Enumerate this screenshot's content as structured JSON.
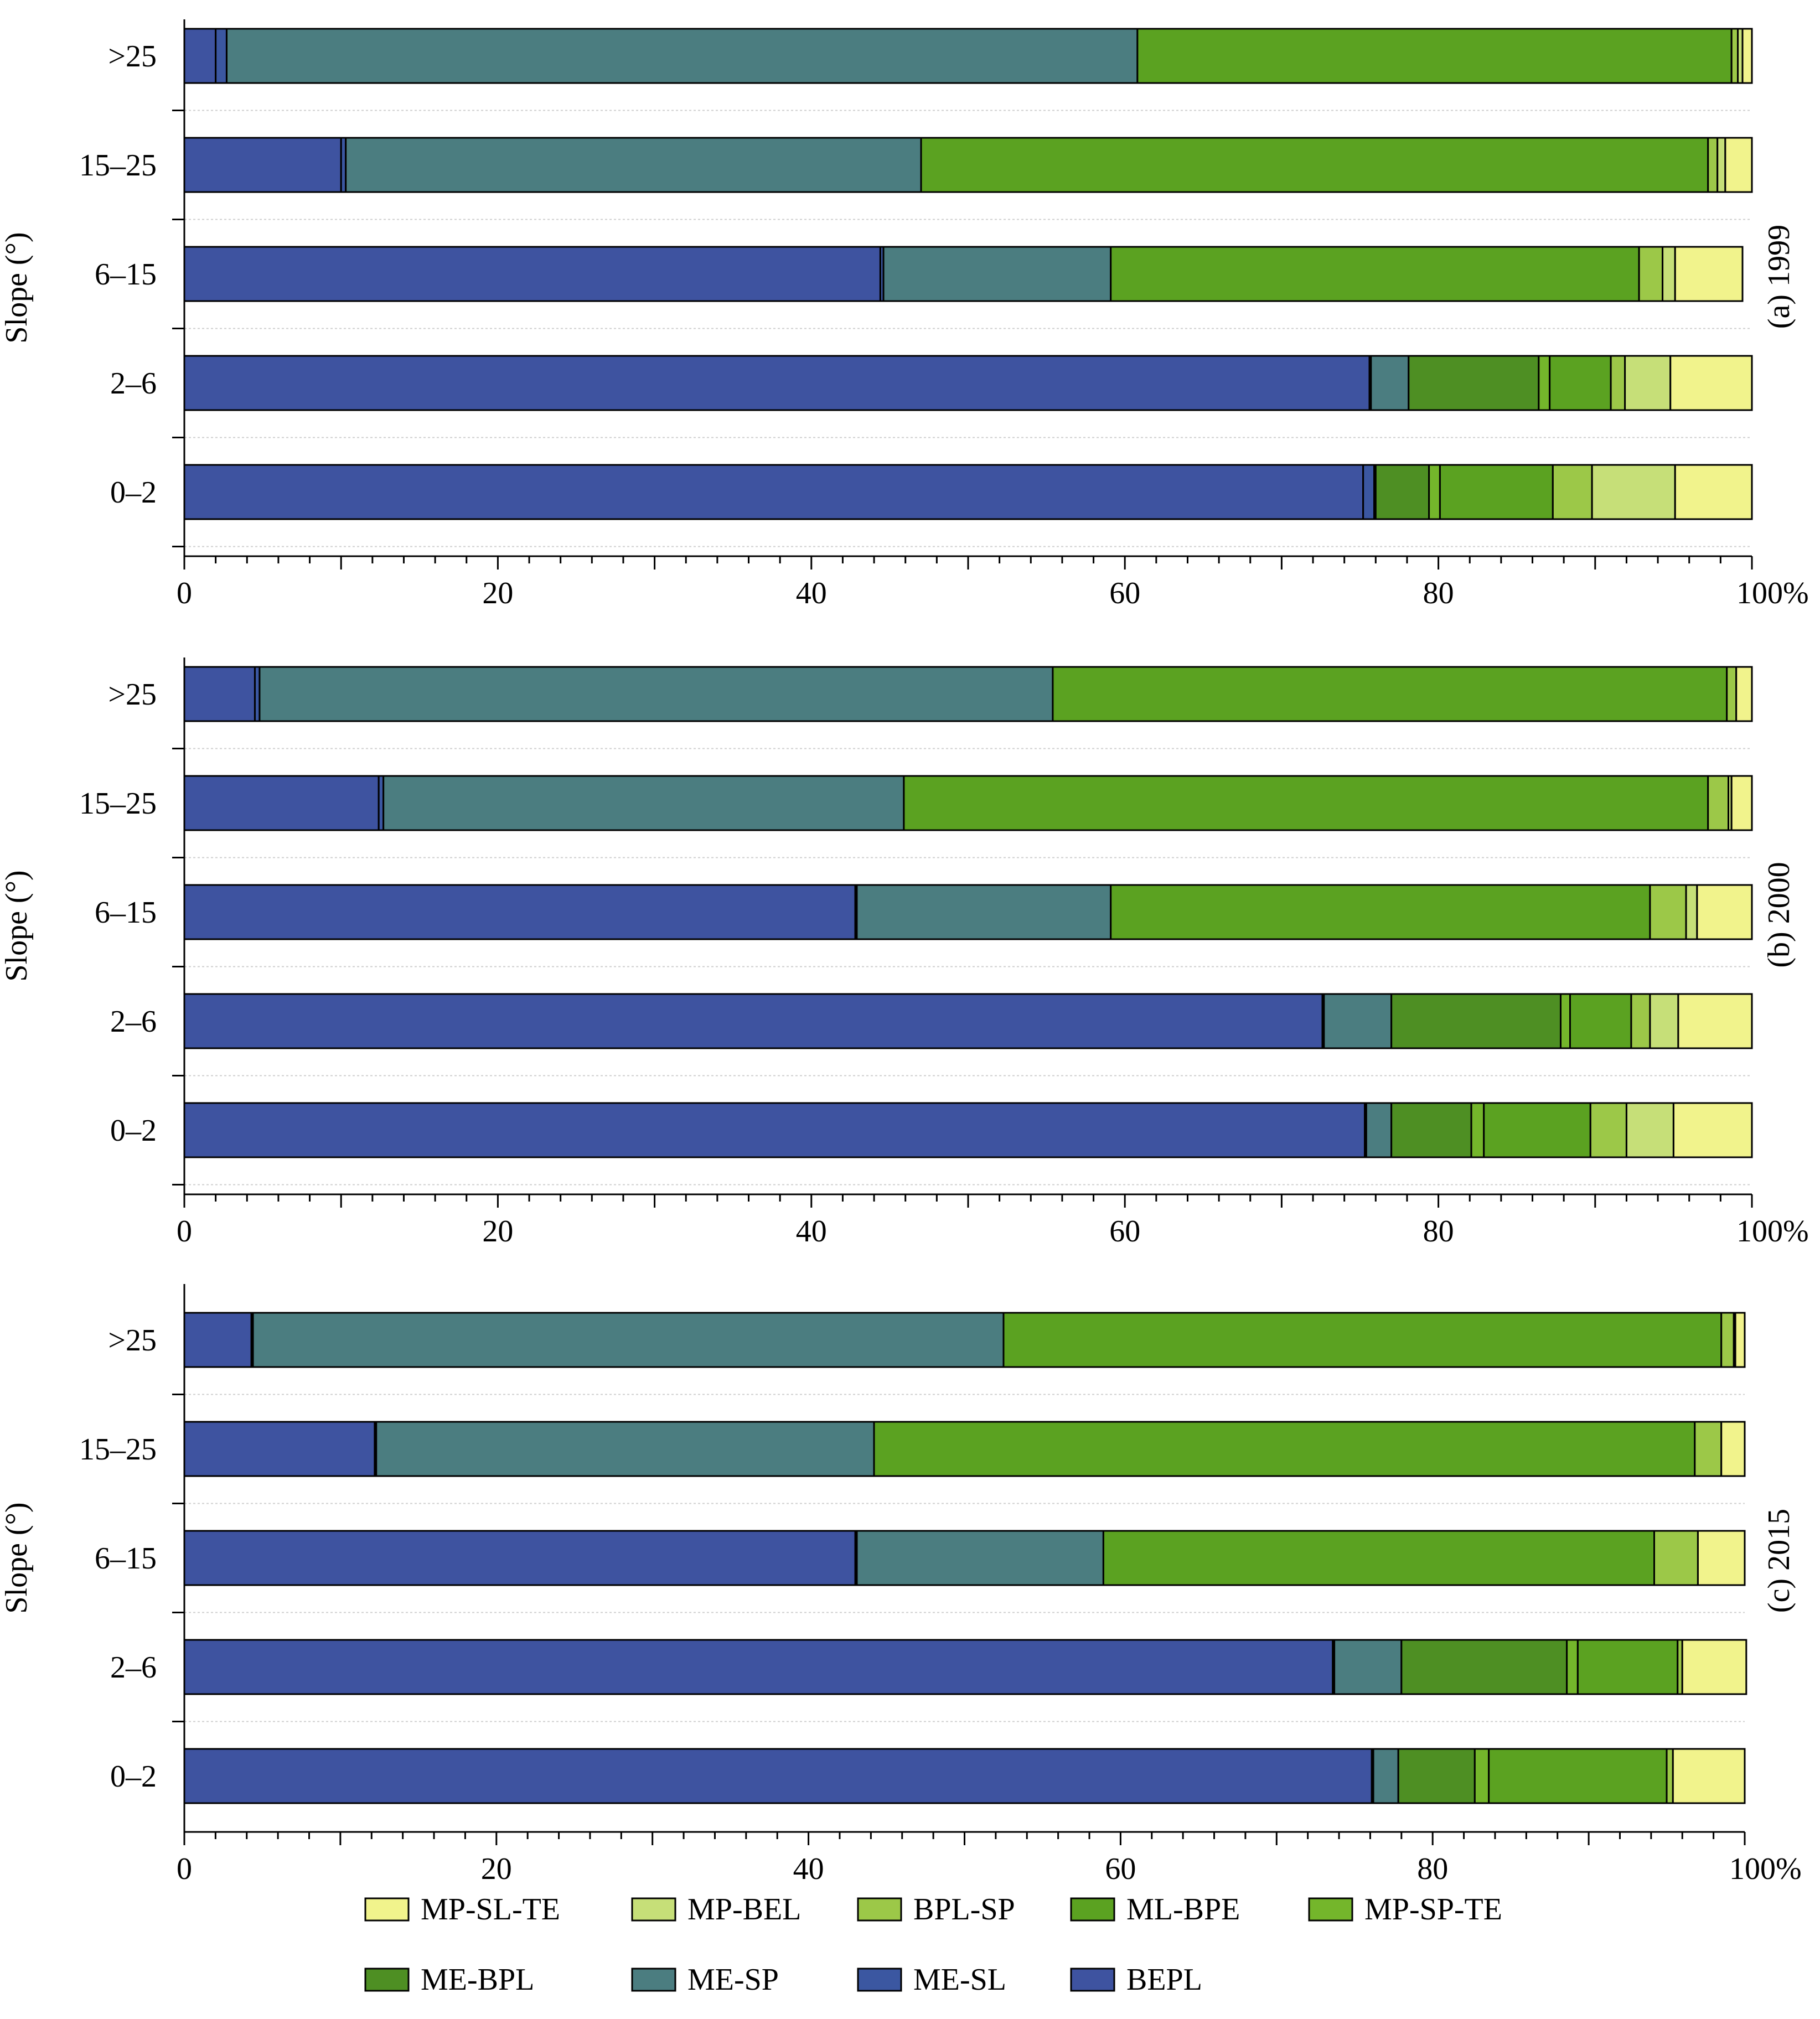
{
  "colors": {
    "MP-SL-TE": "#f1f38c",
    "MP-BEL": "#c6df78",
    "BPL-SP": "#9cc848",
    "ML-BPE": "#5ba221",
    "MP-SP-TE": "#74b62b",
    "ME-BPL": "#4e8f23",
    "ME-SP": "#4b7d80",
    "ME-SL": "#3b57a1",
    "BEPL": "#3e53a0"
  },
  "legend": {
    "items": [
      {
        "key": "MP-SL-TE",
        "label": "MP-SL-TE"
      },
      {
        "key": "MP-BEL",
        "label": "MP-BEL"
      },
      {
        "key": "BPL-SP",
        "label": "BPL-SP"
      },
      {
        "key": "ML-BPE",
        "label": "ML-BPE"
      },
      {
        "key": "MP-SP-TE",
        "label": "MP-SP-TE"
      },
      {
        "key": "ME-BPL",
        "label": "ME-BPL"
      },
      {
        "key": "ME-SP",
        "label": "ME-SP"
      },
      {
        "key": "ME-SL",
        "label": "ME-SL"
      },
      {
        "key": "BEPL",
        "label": "BEPL"
      }
    ]
  },
  "chart_data": [
    {
      "type": "bar",
      "orientation": "horizontal",
      "stacked": true,
      "title": "(a) 1999",
      "ylabel": "Slope (°)",
      "xlabel": "",
      "xlim": [
        0,
        100
      ],
      "x_ticks": [
        "0",
        "20",
        "40",
        "60",
        "80",
        "100%"
      ],
      "categories": [
        ">25",
        "15–25",
        "6–15",
        "2–6",
        "0–2"
      ],
      "series": [
        {
          "name": "BEPL",
          "values": [
            2.0,
            10.0,
            44.4,
            75.6,
            75.2
          ]
        },
        {
          "name": "ME-SL",
          "values": [
            0.7,
            0.3,
            0.2,
            0.1,
            0.7
          ]
        },
        {
          "name": "ME-SP",
          "values": [
            58.1,
            36.7,
            14.5,
            2.4,
            0.1
          ]
        },
        {
          "name": "ME-BPL",
          "values": [
            0.0,
            0.0,
            0.0,
            8.3,
            3.4
          ]
        },
        {
          "name": "MP-SP-TE",
          "values": [
            0.0,
            0.0,
            0.0,
            0.7,
            0.7
          ]
        },
        {
          "name": "ML-BPE",
          "values": [
            37.9,
            50.2,
            33.7,
            3.9,
            7.2
          ]
        },
        {
          "name": "BPL-SP",
          "values": [
            0.4,
            0.6,
            1.5,
            0.9,
            2.5
          ]
        },
        {
          "name": "MP-BEL",
          "values": [
            0.3,
            0.5,
            0.8,
            2.9,
            5.3
          ]
        },
        {
          "name": "MP-SL-TE",
          "values": [
            0.6,
            1.7,
            4.3,
            5.2,
            4.9
          ]
        }
      ]
    },
    {
      "type": "bar",
      "orientation": "horizontal",
      "stacked": true,
      "title": "(b) 2000",
      "ylabel": "Slope (°)",
      "xlabel": "",
      "xlim": [
        0,
        100
      ],
      "x_ticks": [
        "0",
        "20",
        "40",
        "60",
        "80",
        "100%"
      ],
      "categories": [
        ">25",
        "15–25",
        "6–15",
        "2–6",
        "0–2"
      ],
      "series": [
        {
          "name": "BEPL",
          "values": [
            4.5,
            12.4,
            42.8,
            72.6,
            75.3
          ]
        },
        {
          "name": "ME-SL",
          "values": [
            0.3,
            0.3,
            0.1,
            0.1,
            0.1
          ]
        },
        {
          "name": "ME-SP",
          "values": [
            50.6,
            33.2,
            16.2,
            4.3,
            1.6
          ]
        },
        {
          "name": "ME-BPL",
          "values": [
            0.0,
            0.0,
            0.0,
            10.8,
            5.1
          ]
        },
        {
          "name": "MP-SP-TE",
          "values": [
            0.0,
            0.0,
            0.0,
            0.6,
            0.8
          ]
        },
        {
          "name": "ML-BPE",
          "values": [
            43.0,
            51.3,
            34.4,
            3.9,
            6.8
          ]
        },
        {
          "name": "BPL-SP",
          "values": [
            0.6,
            1.3,
            2.3,
            1.2,
            2.3
          ]
        },
        {
          "name": "MP-BEL",
          "values": [
            0.0,
            0.2,
            0.7,
            1.8,
            3.0
          ]
        },
        {
          "name": "MP-SL-TE",
          "values": [
            1.0,
            1.3,
            3.5,
            4.7,
            5.0
          ]
        }
      ]
    },
    {
      "type": "bar",
      "orientation": "horizontal",
      "stacked": true,
      "title": "(c) 2015",
      "ylabel": "Slope (°)",
      "xlabel": "",
      "xlim": [
        0,
        100
      ],
      "x_ticks": [
        "0",
        "20",
        "40",
        "60",
        "80",
        "100%"
      ],
      "categories": [
        ">25",
        "15–25",
        "6–15",
        "2–6",
        "0–2"
      ],
      "series": [
        {
          "name": "BEPL",
          "values": [
            4.3,
            12.2,
            43.0,
            73.6,
            76.1
          ]
        },
        {
          "name": "ME-SL",
          "values": [
            0.1,
            0.1,
            0.1,
            0.1,
            0.1
          ]
        },
        {
          "name": "ME-SP",
          "values": [
            48.1,
            31.9,
            15.8,
            4.3,
            1.6
          ]
        },
        {
          "name": "ME-BPL",
          "values": [
            0.0,
            0.0,
            0.0,
            10.6,
            4.9
          ]
        },
        {
          "name": "MP-SP-TE",
          "values": [
            0.0,
            0.0,
            0.0,
            0.7,
            0.9
          ]
        },
        {
          "name": "ML-BPE",
          "values": [
            46.0,
            52.6,
            35.3,
            6.4,
            11.4
          ]
        },
        {
          "name": "BPL-SP",
          "values": [
            0.8,
            1.7,
            2.8,
            0.3,
            0.4
          ]
        },
        {
          "name": "MP-BEL",
          "values": [
            0.1,
            0.0,
            0.0,
            0.0,
            0.0
          ]
        },
        {
          "name": "MP-SL-TE",
          "values": [
            0.6,
            1.5,
            3.0,
            4.1,
            4.6
          ]
        }
      ]
    }
  ]
}
